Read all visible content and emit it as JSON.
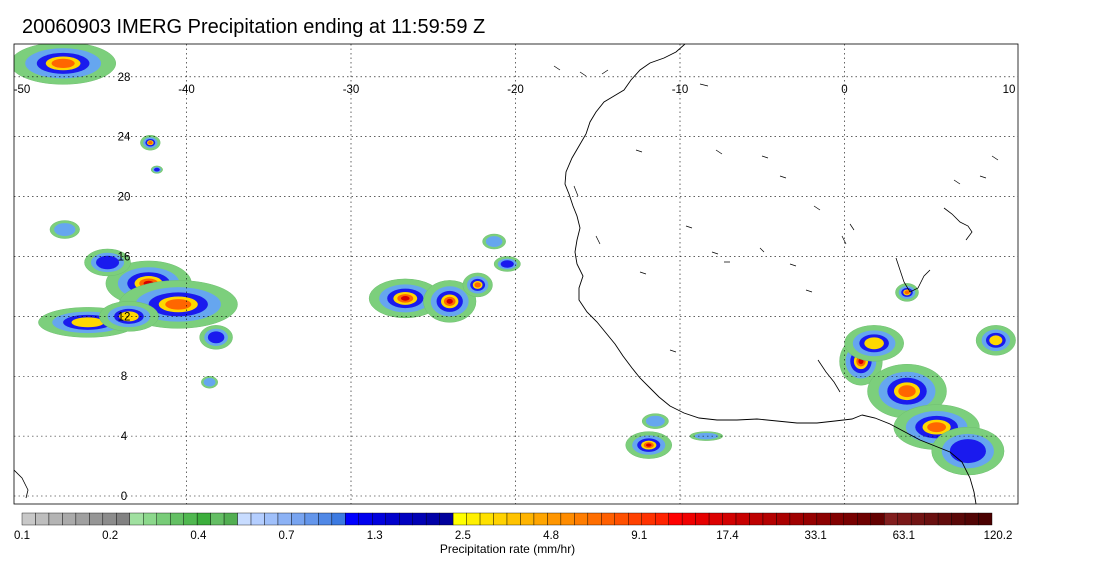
{
  "title": "20060903 IMERG Precipitation ending at 11:59:59 Z",
  "map": {
    "lon_range": [
      -50,
      10
    ],
    "lat_range": [
      -0.5,
      30.2
    ],
    "lon_ticks": [
      -50,
      -40,
      -30,
      -20,
      -10,
      0,
      10
    ],
    "lon_labels": [
      "-50",
      "-40",
      "-30",
      "-20",
      "-10",
      "0",
      "10"
    ],
    "lat_ticks": [
      0,
      4,
      8,
      12,
      16,
      20,
      24,
      28
    ],
    "lat_labels": [
      "0",
      "4",
      "8",
      "12",
      "16",
      "20",
      "24",
      "28"
    ],
    "gridlines": "dotted",
    "coastline_color": "#000000"
  },
  "precip_cells": [
    {
      "lon": -47.5,
      "lat": 28.9,
      "rlon": 3.2,
      "rlat": 1.4,
      "peak": 4
    },
    {
      "lon": -42.3,
      "lat": 14.2,
      "rlon": 2.6,
      "rlat": 1.5,
      "peak": 5
    },
    {
      "lon": -40.5,
      "lat": 12.8,
      "rlon": 3.6,
      "rlat": 1.6,
      "peak": 4
    },
    {
      "lon": -46.0,
      "lat": 11.6,
      "rlon": 3.0,
      "rlat": 1.0,
      "peak": 3
    },
    {
      "lon": -43.5,
      "lat": 12.0,
      "rlon": 1.8,
      "rlat": 1.0,
      "peak": 3
    },
    {
      "lon": -44.8,
      "lat": 15.6,
      "rlon": 1.4,
      "rlat": 0.9,
      "peak": 2
    },
    {
      "lon": -47.4,
      "lat": 17.8,
      "rlon": 0.9,
      "rlat": 0.6,
      "peak": 1
    },
    {
      "lon": -42.2,
      "lat": 23.6,
      "rlon": 0.6,
      "rlat": 0.5,
      "peak": 4
    },
    {
      "lon": -41.8,
      "lat": 21.8,
      "rlon": 0.35,
      "rlat": 0.25,
      "peak": 2
    },
    {
      "lon": -38.2,
      "lat": 10.6,
      "rlon": 1.0,
      "rlat": 0.8,
      "peak": 2
    },
    {
      "lon": -26.7,
      "lat": 13.2,
      "rlon": 2.2,
      "rlat": 1.3,
      "peak": 5
    },
    {
      "lon": -24.0,
      "lat": 13.0,
      "rlon": 1.6,
      "rlat": 1.4,
      "peak": 5
    },
    {
      "lon": -22.3,
      "lat": 14.1,
      "rlon": 0.9,
      "rlat": 0.8,
      "peak": 4
    },
    {
      "lon": -20.5,
      "lat": 15.5,
      "rlon": 0.8,
      "rlat": 0.5,
      "peak": 2
    },
    {
      "lon": -21.3,
      "lat": 17.0,
      "rlon": 0.7,
      "rlat": 0.5,
      "peak": 1
    },
    {
      "lon": -11.9,
      "lat": 3.4,
      "rlon": 1.4,
      "rlat": 0.9,
      "peak": 5
    },
    {
      "lon": -11.5,
      "lat": 5.0,
      "rlon": 0.8,
      "rlat": 0.5,
      "peak": 1
    },
    {
      "lon": -8.4,
      "lat": 4.0,
      "rlon": 1.0,
      "rlat": 0.3,
      "peak": 1
    },
    {
      "lon": 1.0,
      "lat": 9.0,
      "rlon": 1.3,
      "rlat": 1.6,
      "peak": 5
    },
    {
      "lon": 3.8,
      "lat": 7.0,
      "rlon": 2.4,
      "rlat": 1.8,
      "peak": 4
    },
    {
      "lon": 5.6,
      "lat": 4.6,
      "rlon": 2.6,
      "rlat": 1.5,
      "peak": 4
    },
    {
      "lon": 3.8,
      "lat": 13.6,
      "rlon": 0.7,
      "rlat": 0.6,
      "peak": 4
    },
    {
      "lon": 9.2,
      "lat": 10.4,
      "rlon": 1.2,
      "rlat": 1.0,
      "peak": 3
    },
    {
      "lon": 1.8,
      "lat": 10.2,
      "rlon": 1.8,
      "rlat": 1.2,
      "peak": 3
    },
    {
      "lon": 7.5,
      "lat": 3.0,
      "rlon": 2.2,
      "rlat": 1.6,
      "peak": 2
    },
    {
      "lon": -38.6,
      "lat": 7.6,
      "rlon": 0.5,
      "rlat": 0.4,
      "peak": 1
    }
  ],
  "colorbar": {
    "colors": [
      "#c8c8c8",
      "#bebebe",
      "#b4b4b4",
      "#aaaaaa",
      "#a0a0a0",
      "#969696",
      "#8c8c8c",
      "#828282",
      "#a0e0a0",
      "#8cd88c",
      "#78cc78",
      "#64c064",
      "#50b850",
      "#3cae3c",
      "#64be64",
      "#52ae52",
      "#c8dcff",
      "#b4ceff",
      "#a0c0fa",
      "#8cb2f5",
      "#78a4f0",
      "#6496eb",
      "#5088e6",
      "#3c7ae1",
      "#0000ff",
      "#0000ee",
      "#0000dd",
      "#0000cc",
      "#0000c0",
      "#0000b4",
      "#0000a8",
      "#00009c",
      "#ffff00",
      "#fff000",
      "#ffe100",
      "#ffd200",
      "#ffc300",
      "#ffb400",
      "#ffa500",
      "#ff9600",
      "#ff8c00",
      "#ff7d00",
      "#ff6e00",
      "#ff5f00",
      "#ff5000",
      "#ff4100",
      "#ff3200",
      "#ff2300",
      "#ff0000",
      "#f00000",
      "#e60000",
      "#dc0000",
      "#d20000",
      "#c80000",
      "#be0000",
      "#b40000",
      "#aa0000",
      "#a00000",
      "#960000",
      "#8c0000",
      "#820000",
      "#780000",
      "#6e0000",
      "#640000",
      "#821e1e",
      "#7a1818",
      "#721414",
      "#6a1010",
      "#620c0c",
      "#5a0808",
      "#520404",
      "#4a0000"
    ],
    "labels": [
      "0.1",
      "0.2",
      "0.4",
      "0.7",
      "1.3",
      "2.5",
      "4.8",
      "9.1",
      "17.4",
      "33.1",
      "63.1",
      "120.2"
    ],
    "unit_label": "Precipitation rate (mm/hr)"
  }
}
